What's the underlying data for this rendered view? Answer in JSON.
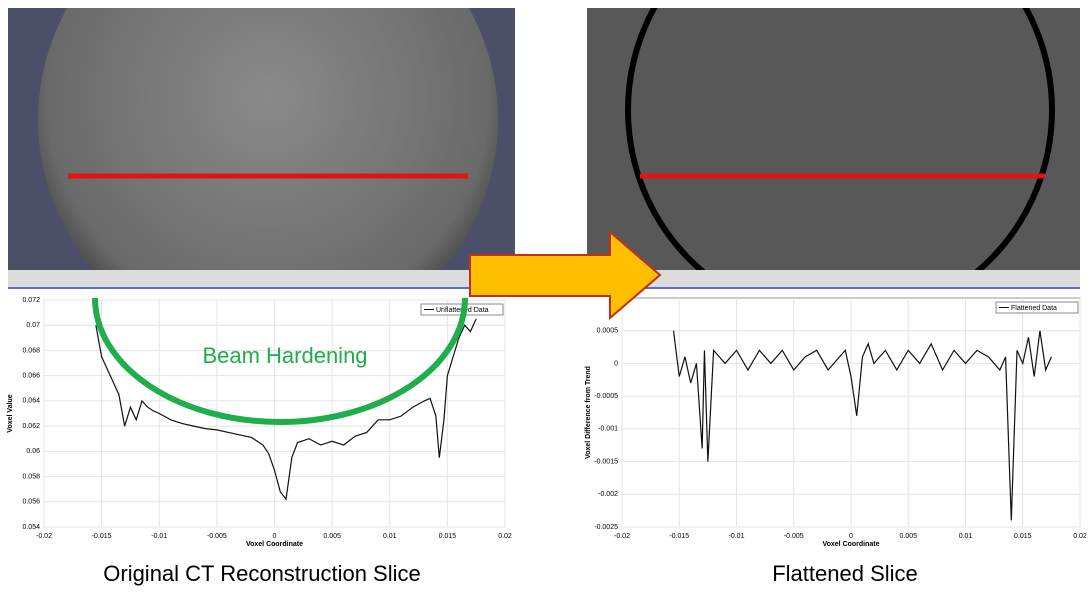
{
  "chart_data": [
    {
      "type": "line",
      "caption": "Original CT Reconstruction Slice",
      "annotation": "Beam Hardening",
      "xlabel": "Voxel Coordinate",
      "ylabel": "Voxel Value",
      "x": [
        -0.0155,
        -0.015,
        -0.0145,
        -0.014,
        -0.0135,
        -0.013,
        -0.0125,
        -0.012,
        -0.0115,
        -0.011,
        -0.0105,
        -0.01,
        -0.009,
        -0.008,
        -0.007,
        -0.006,
        -0.005,
        -0.004,
        -0.003,
        -0.002,
        -0.001,
        -0.0005,
        0,
        0.0005,
        0.001,
        0.0015,
        0.002,
        0.003,
        0.004,
        0.005,
        0.006,
        0.007,
        0.008,
        0.009,
        0.01,
        0.011,
        0.012,
        0.013,
        0.0135,
        0.014,
        0.0143,
        0.0147,
        0.015,
        0.0155,
        0.016,
        0.0165,
        0.017,
        0.0175
      ],
      "series": [
        {
          "name": "Unflattened Data",
          "color": "#111111",
          "values": [
            0.07,
            0.0675,
            0.0665,
            0.0655,
            0.0645,
            0.062,
            0.0635,
            0.0625,
            0.064,
            0.0635,
            0.0632,
            0.063,
            0.0625,
            0.0622,
            0.062,
            0.0618,
            0.0617,
            0.0615,
            0.0613,
            0.0611,
            0.0605,
            0.0598,
            0.0585,
            0.0568,
            0.0562,
            0.0595,
            0.0607,
            0.061,
            0.0605,
            0.0608,
            0.0605,
            0.0612,
            0.0615,
            0.0625,
            0.0625,
            0.0628,
            0.0635,
            0.064,
            0.0642,
            0.0628,
            0.0595,
            0.0625,
            0.066,
            0.0675,
            0.069,
            0.07,
            0.0695,
            0.0705
          ]
        }
      ],
      "xlim": [
        -0.02,
        0.02
      ],
      "xticks": [
        -0.02,
        -0.015,
        -0.01,
        -0.005,
        0,
        0.005,
        0.01,
        0.015,
        0.02
      ],
      "ylim": [
        0.054,
        0.072
      ],
      "yticks": [
        0.054,
        0.056,
        0.058,
        0.06,
        0.062,
        0.064,
        0.066,
        0.068,
        0.07,
        0.072
      ],
      "grid": true
    },
    {
      "type": "line",
      "caption": "Flattened Slice",
      "xlabel": "Voxel Coordinate",
      "ylabel": "Voxel Difference from Trend",
      "x": [
        -0.0155,
        -0.015,
        -0.0145,
        -0.014,
        -0.0135,
        -0.013,
        -0.0128,
        -0.0125,
        -0.012,
        -0.0115,
        -0.011,
        -0.01,
        -0.009,
        -0.008,
        -0.007,
        -0.006,
        -0.005,
        -0.004,
        -0.003,
        -0.002,
        -0.001,
        -0.0005,
        0,
        0.0005,
        0.001,
        0.0015,
        0.002,
        0.003,
        0.004,
        0.005,
        0.006,
        0.007,
        0.008,
        0.009,
        0.01,
        0.011,
        0.012,
        0.013,
        0.0135,
        0.014,
        0.0145,
        0.015,
        0.0155,
        0.016,
        0.0165,
        0.017,
        0.0175
      ],
      "series": [
        {
          "name": "Flattened Data",
          "color": "#111111",
          "values": [
            0.0005,
            -0.0002,
            0.0001,
            -0.0003,
            0,
            -0.0013,
            0.0002,
            -0.0015,
            0.0002,
            0.0001,
            0,
            0.0002,
            -0.0001,
            0.0002,
            0,
            0.0002,
            -0.0001,
            0.0001,
            0.0002,
            -0.0001,
            0.0001,
            0.0002,
            -0.0002,
            -0.0008,
            0.0001,
            0.0003,
            0,
            0.0002,
            -0.0001,
            0.0002,
            0,
            0.0003,
            -0.0001,
            0.0002,
            0,
            0.0002,
            0.0001,
            -0.0001,
            0.0001,
            -0.0024,
            0.0002,
            0,
            0.0004,
            -0.0002,
            0.0005,
            -0.0001,
            0.0001
          ]
        }
      ],
      "xlim": [
        -0.02,
        0.02
      ],
      "xticks": [
        -0.02,
        -0.015,
        -0.01,
        -0.005,
        0,
        0.005,
        0.01,
        0.015,
        0.02
      ],
      "ylim": [
        -0.0025,
        0.001
      ],
      "yticks": [
        -0.0025,
        -0.002,
        -0.0015,
        -0.001,
        -0.0005,
        0,
        0.0005
      ],
      "grid": true
    }
  ]
}
